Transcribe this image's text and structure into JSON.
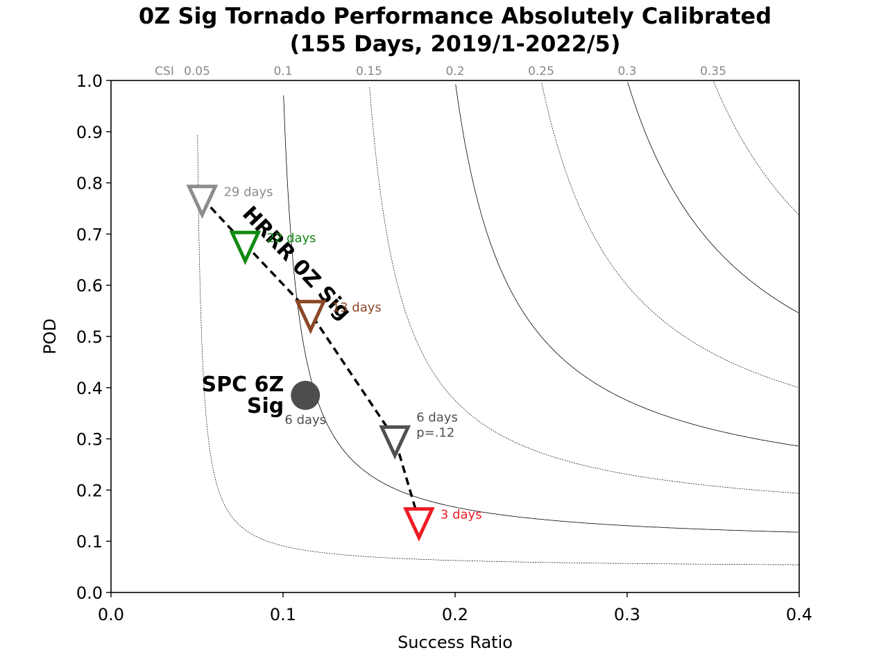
{
  "chart_data": {
    "type": "scatter",
    "title": "0Z Sig Tornado Performance Absolutely Calibrated",
    "subtitle": "(155 Days, 2019/1-2022/5)",
    "xlabel": "Success Ratio",
    "ylabel": "POD",
    "xlim": [
      0.0,
      0.4
    ],
    "ylim": [
      0.0,
      1.0
    ],
    "xticks": [
      "0.0",
      "0.1",
      "0.2",
      "0.3",
      "0.4"
    ],
    "yticks": [
      "0.0",
      "0.1",
      "0.2",
      "0.3",
      "0.4",
      "0.5",
      "0.6",
      "0.7",
      "0.8",
      "0.9",
      "1.0"
    ],
    "grid": false,
    "csi_prefix": "CSI",
    "csi_contours": [
      {
        "value": 0.05,
        "label": "0.05",
        "style": "dotted"
      },
      {
        "value": 0.1,
        "label": "0.1",
        "style": "solid"
      },
      {
        "value": 0.15,
        "label": "0.15",
        "style": "dotted"
      },
      {
        "value": 0.2,
        "label": "0.2",
        "style": "solid"
      },
      {
        "value": 0.25,
        "label": "0.25",
        "style": "dotted"
      },
      {
        "value": 0.3,
        "label": "0.3",
        "style": "solid"
      },
      {
        "value": 0.35,
        "label": "0.35",
        "style": "dotted"
      }
    ],
    "series": [
      {
        "name": "HRRR 0Z Sig",
        "display_name": "HRRR 0Z Sig",
        "marker": "triangle-down",
        "line": "dashed",
        "points": [
          {
            "x": 0.053,
            "y": 0.77,
            "label": "29 days",
            "color": "#8c8c8c"
          },
          {
            "x": 0.078,
            "y": 0.68,
            "label": "22 days",
            "color": "#128a12"
          },
          {
            "x": 0.116,
            "y": 0.545,
            "label": "13 days",
            "color": "#8b4726"
          },
          {
            "x": 0.165,
            "y": 0.3,
            "label": "6 days",
            "label2": "p=.12",
            "color": "#505050"
          },
          {
            "x": 0.179,
            "y": 0.14,
            "label": "3 days",
            "color": "#ee1c24"
          }
        ]
      },
      {
        "name": "SPC 6Z Sig",
        "line1": "SPC 6Z",
        "line2": "Sig",
        "marker": "circle",
        "color": "#4d4d4d",
        "points": [
          {
            "x": 0.113,
            "y": 0.385,
            "label": "6 days",
            "color": "#505050"
          }
        ]
      }
    ]
  }
}
